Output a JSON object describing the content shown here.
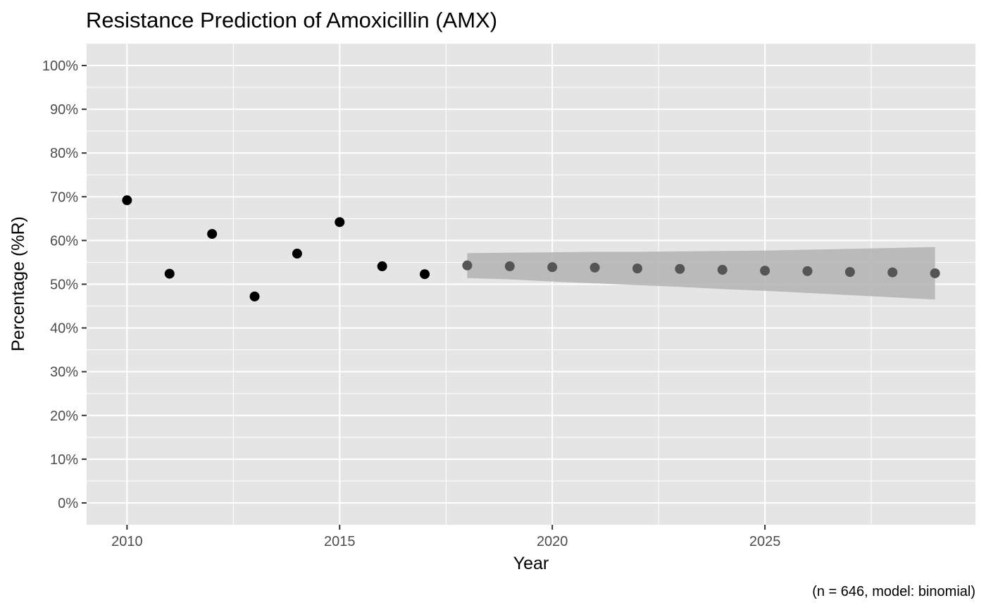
{
  "chart_data": {
    "type": "scatter",
    "title": "Resistance Prediction of Amoxicillin (AMX)",
    "xlabel": "Year",
    "ylabel": "Percentage (%R)",
    "caption": "(n = 646, model: binomial)",
    "xlim": [
      2009.05,
      2029.95
    ],
    "ylim": [
      -0.05,
      1.05
    ],
    "x_ticks": [
      2010,
      2015,
      2020,
      2025
    ],
    "y_ticks": [
      {
        "value": 0.0,
        "label": "0%"
      },
      {
        "value": 0.1,
        "label": "10%"
      },
      {
        "value": 0.2,
        "label": "20%"
      },
      {
        "value": 0.3,
        "label": "30%"
      },
      {
        "value": 0.4,
        "label": "40%"
      },
      {
        "value": 0.5,
        "label": "50%"
      },
      {
        "value": 0.6,
        "label": "60%"
      },
      {
        "value": 0.7,
        "label": "70%"
      },
      {
        "value": 0.8,
        "label": "80%"
      },
      {
        "value": 0.9,
        "label": "90%"
      },
      {
        "value": 1.0,
        "label": "100%"
      }
    ],
    "grid": true,
    "observed": {
      "x": [
        2010,
        2011,
        2012,
        2013,
        2014,
        2015,
        2016,
        2017
      ],
      "y": [
        0.692,
        0.524,
        0.615,
        0.472,
        0.57,
        0.642,
        0.541,
        0.523
      ],
      "color": "#000000"
    },
    "predicted": {
      "x": [
        2018,
        2019,
        2020,
        2021,
        2022,
        2023,
        2024,
        2025,
        2026,
        2027,
        2028,
        2029
      ],
      "y": [
        0.543,
        0.541,
        0.539,
        0.538,
        0.536,
        0.535,
        0.533,
        0.531,
        0.53,
        0.528,
        0.527,
        0.525
      ],
      "lower": [
        0.514,
        0.511,
        0.506,
        0.502,
        0.498,
        0.494,
        0.489,
        0.485,
        0.48,
        0.475,
        0.47,
        0.465
      ],
      "upper": [
        0.571,
        0.572,
        0.573,
        0.574,
        0.574,
        0.575,
        0.576,
        0.577,
        0.579,
        0.581,
        0.583,
        0.585
      ],
      "color": "#555555",
      "band_color": "#b3b3b3"
    },
    "colors": {
      "panel_background": "#e5e5e5",
      "grid_major": "#ffffff",
      "text": "#000000",
      "tick_text": "#4d4d4d"
    }
  }
}
